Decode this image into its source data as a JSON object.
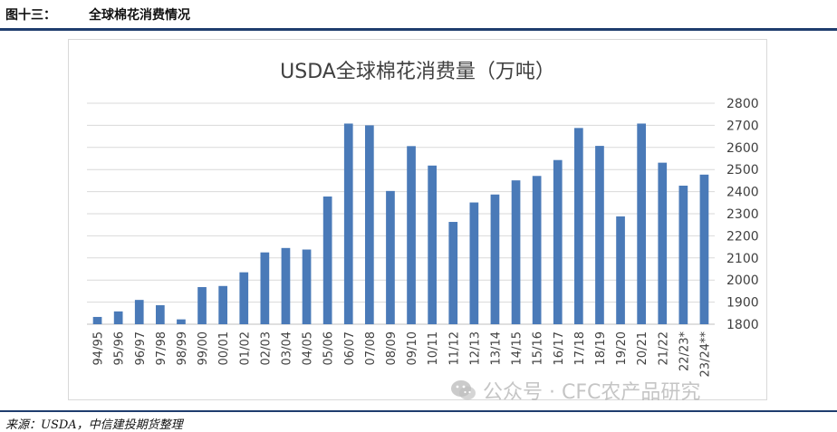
{
  "header": {
    "label": "图十三：",
    "title": "全球棉花消费情况"
  },
  "source": "来源：USDA，中信建投期货整理",
  "watermark": "公众号 · CFC农产品研究",
  "colors": {
    "bar": "#4a7ab8",
    "rule": "#1f3d6e",
    "grid": "#d9d9d9"
  },
  "chart_data": {
    "type": "bar",
    "title": "USDA全球棉花消费量（万吨）",
    "xlabel": "",
    "ylabel": "",
    "ylim": [
      1800,
      2800
    ],
    "yticks": [
      1800,
      1900,
      2000,
      2100,
      2200,
      2300,
      2400,
      2500,
      2600,
      2700,
      2800
    ],
    "y_axis_position": "right",
    "grid": true,
    "legend": "none",
    "categories": [
      "94/95",
      "95/96",
      "96/97",
      "97/98",
      "98/99",
      "99/00",
      "00/01",
      "01/02",
      "02/03",
      "03/04",
      "04/05",
      "05/06",
      "06/07",
      "07/08",
      "08/09",
      "09/10",
      "10/11",
      "11/12",
      "12/13",
      "13/14",
      "14/15",
      "15/16",
      "16/17",
      "17/18",
      "18/19",
      "19/20",
      "20/21",
      "21/22",
      "22/23*",
      "23/24**"
    ],
    "values": [
      1833,
      1858,
      1910,
      1886,
      1822,
      1968,
      1973,
      2035,
      2125,
      2145,
      2138,
      2378,
      2708,
      2700,
      2403,
      2606,
      2518,
      2263,
      2351,
      2387,
      2451,
      2471,
      2543,
      2688,
      2607,
      2288,
      2708,
      2531,
      2427,
      2477
    ]
  }
}
